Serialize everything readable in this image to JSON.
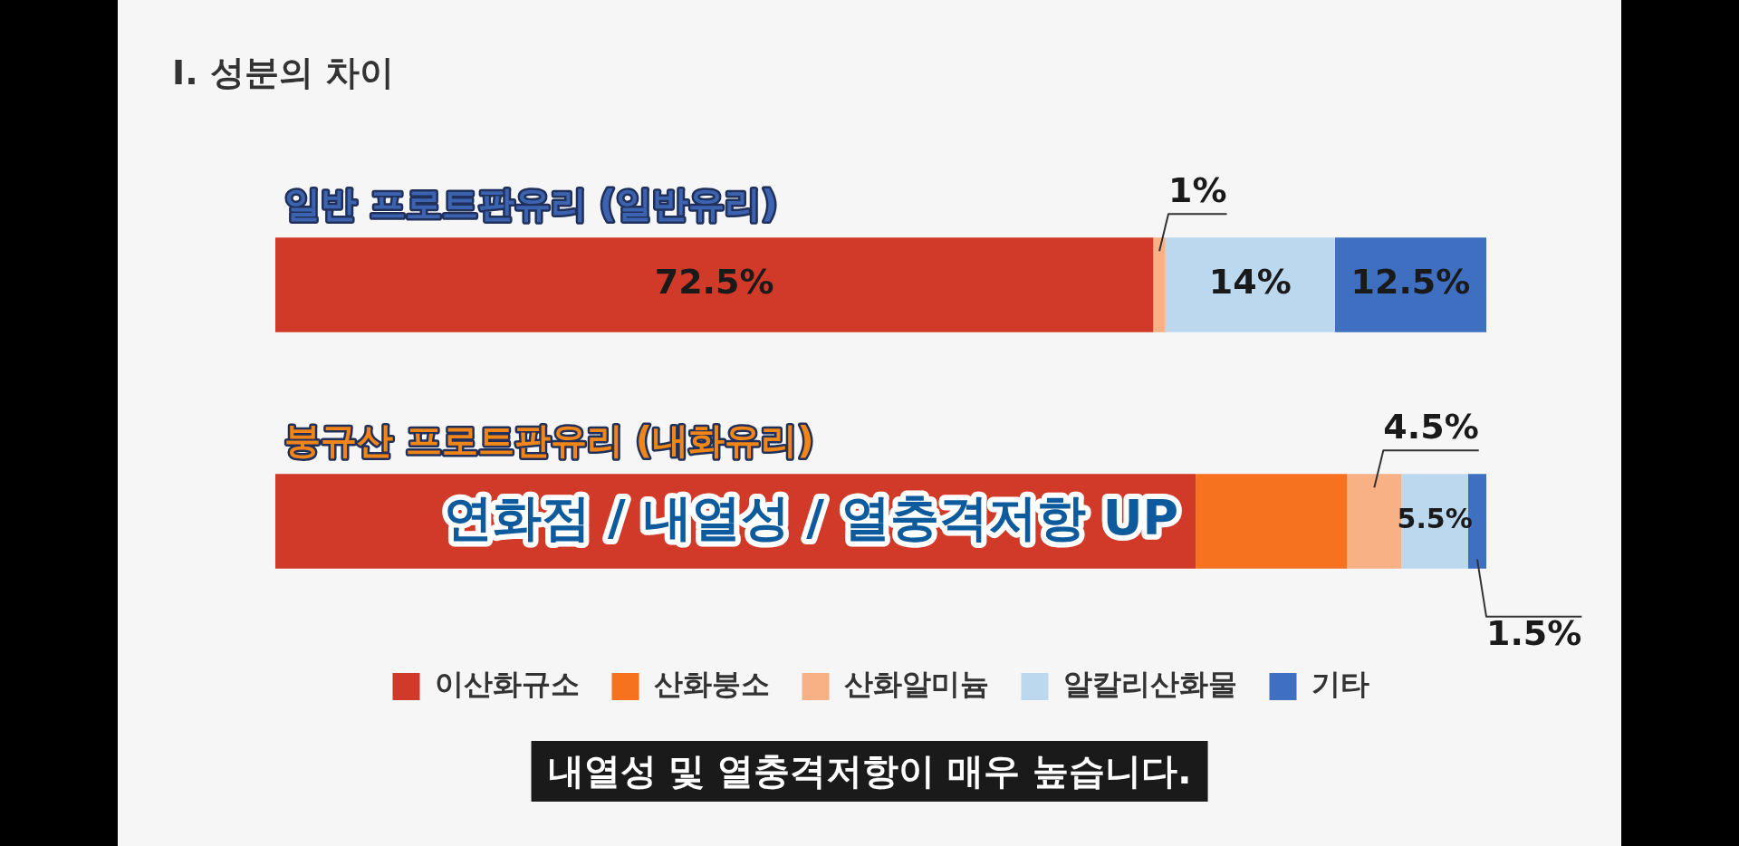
{
  "chart_data": {
    "type": "bar",
    "orientation": "horizontal",
    "stacked": true,
    "title": "Ⅰ. 성분의 차이",
    "categories": [
      "일반 프로트판유리 (일반유리)",
      "붕규산 프로트판유리 (내화유리)"
    ],
    "series": [
      {
        "name": "이산화규소",
        "color": "#d13a28",
        "values": [
          72.5,
          76
        ],
        "value_labels": [
          "72.5%",
          null
        ]
      },
      {
        "name": "산화붕소",
        "color": "#f7721f",
        "values": [
          0,
          12.5
        ],
        "value_labels": [
          null,
          null
        ]
      },
      {
        "name": "산화알미늄",
        "color": "#f8b185",
        "values": [
          1,
          4.5
        ],
        "value_labels": [
          "1%",
          "4.5%"
        ]
      },
      {
        "name": "알칼리산화물",
        "color": "#bcd8ef",
        "values": [
          14,
          5.5
        ],
        "value_labels": [
          "14%",
          "5.5%"
        ]
      },
      {
        "name": "기타",
        "color": "#3e6fc0",
        "values": [
          12.5,
          1.5
        ],
        "value_labels": [
          "12.5%",
          "1.5%"
        ]
      }
    ],
    "xlim": [
      0,
      100
    ],
    "tick_labels": false,
    "legend": "bottom",
    "annotations": [
      "연화점 / 내열성 / 열충격저항 UP",
      "내열성 및 열충격저항이 매우 높습니다."
    ]
  }
}
